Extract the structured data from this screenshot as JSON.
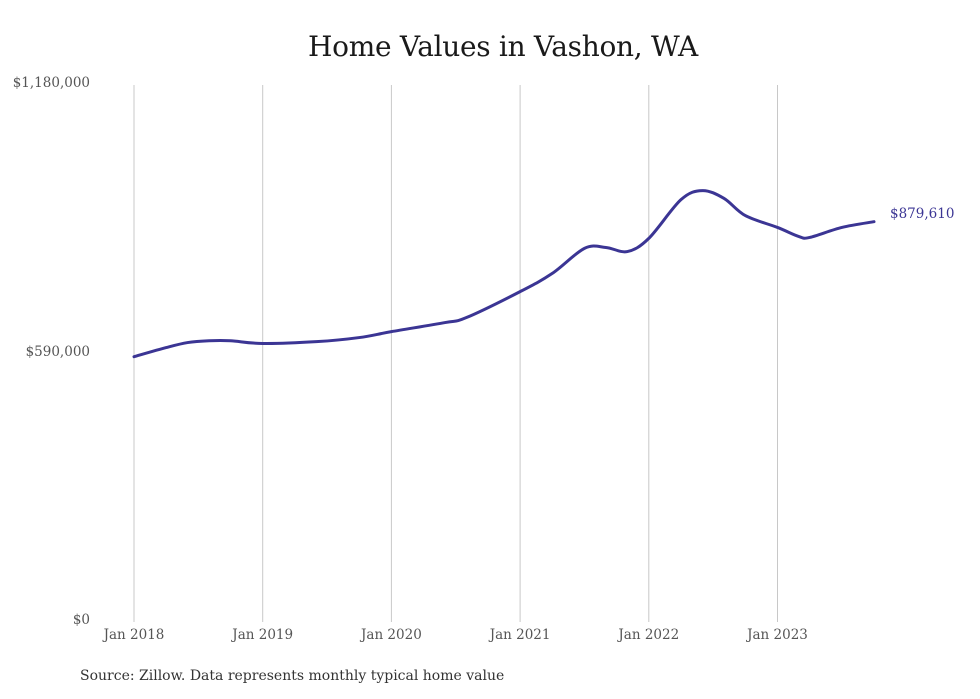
{
  "title": "Home Values in Vashon, WA",
  "source": "Source: Zillow. Data represents monthly typical home value",
  "colors": {
    "line": "#3b3594",
    "grid": "#c8c8c8",
    "axis_text": "#555555",
    "end_label": "#3b3594"
  },
  "end_label": "$879,610",
  "y_ticks": [
    {
      "label": "$1,180,000",
      "value": 1180000
    },
    {
      "label": "$590,000",
      "value": 590000
    },
    {
      "label": "$0",
      "value": 0
    }
  ],
  "x_ticks": [
    "Jan 2018",
    "Jan 2019",
    "Jan 2020",
    "Jan 2021",
    "Jan 2022",
    "Jan 2023"
  ],
  "chart_data": {
    "type": "line",
    "title": "Home Values in Vashon, WA",
    "xlabel": "",
    "ylabel": "",
    "ylim": [
      0,
      1180000
    ],
    "grid": {
      "vertical": true,
      "horizontal": false
    },
    "x_tick_labels": [
      "Jan 2018",
      "Jan 2019",
      "Jan 2020",
      "Jan 2021",
      "Jan 2022",
      "Jan 2023"
    ],
    "y_tick_labels": [
      "$0",
      "$590,000",
      "$1,180,000"
    ],
    "annotations": [
      {
        "text": "$879,610",
        "at": "Oct 2023"
      }
    ],
    "series": [
      {
        "name": "Typical home value",
        "x": [
          "2018-01",
          "2018-04",
          "2018-06",
          "2018-08",
          "2018-10",
          "2019-01",
          "2019-06",
          "2019-10",
          "2020-01",
          "2020-06",
          "2020-08",
          "2021-01",
          "2021-04",
          "2021-07",
          "2021-09",
          "2021-11",
          "2022-01",
          "2022-04",
          "2022-06",
          "2022-08",
          "2022-10",
          "2023-01",
          "2023-03",
          "2023-04",
          "2023-07",
          "2023-10"
        ],
        "values": [
          583000,
          603000,
          614000,
          618000,
          618000,
          612000,
          616000,
          625000,
          638000,
          658000,
          669000,
          726000,
          766000,
          821000,
          823000,
          814000,
          843000,
          928000,
          948000,
          931000,
          893000,
          867000,
          847000,
          845000,
          867000,
          879610
        ]
      }
    ]
  }
}
